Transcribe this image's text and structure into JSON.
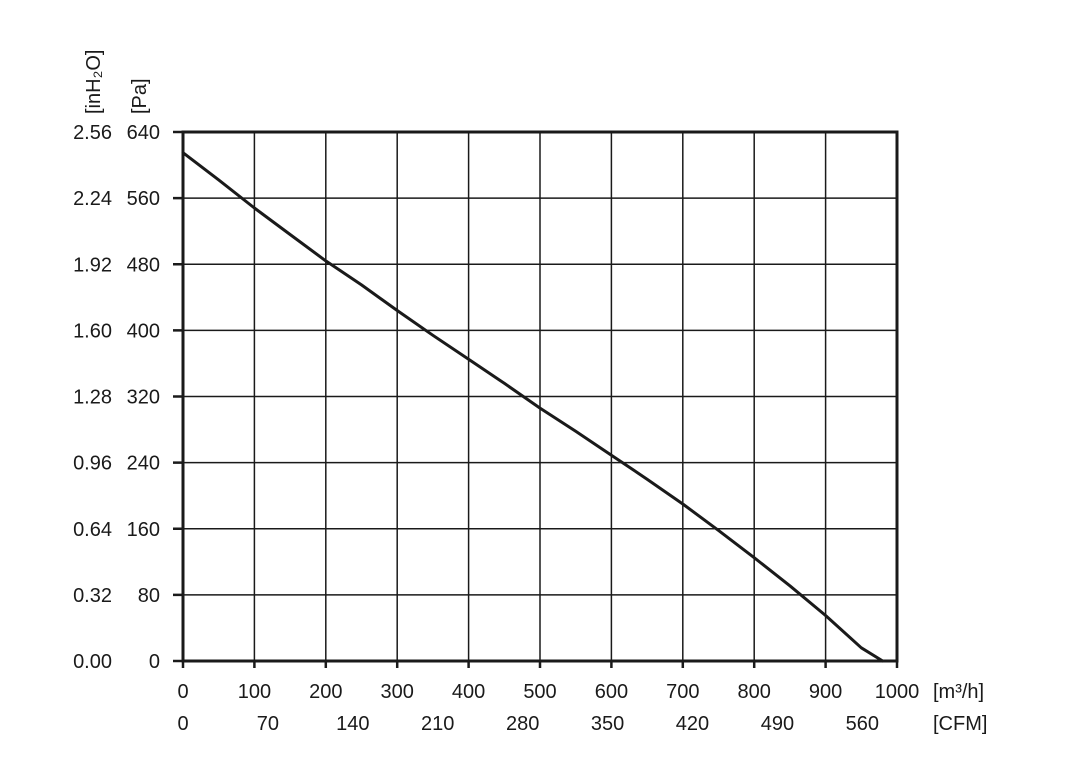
{
  "chart_data": {
    "type": "line",
    "x_label_primary": "[m³/h]",
    "x_label_secondary": "[CFM]",
    "y_label_primary": "[Pa]",
    "y_label_secondary": "[inH₂O]",
    "x_ticks": [
      "0",
      "100",
      "200",
      "300",
      "400",
      "500",
      "600",
      "700",
      "800",
      "900",
      "1000"
    ],
    "x_ticks_secondary": [
      "0",
      "70",
      "140",
      "210",
      "280",
      "350",
      "420",
      "490",
      "560"
    ],
    "x_ticks_secondary_values": [
      0,
      70,
      140,
      210,
      280,
      350,
      420,
      490,
      560
    ],
    "y_ticks_pa": [
      "0",
      "80",
      "160",
      "240",
      "320",
      "400",
      "480",
      "560",
      "640"
    ],
    "y_ticks_inh2o": [
      "0.00",
      "0.32",
      "0.64",
      "0.96",
      "1.28",
      "1.60",
      "1.92",
      "2.24",
      "2.56"
    ],
    "xlim": [
      0,
      1000
    ],
    "ylim": [
      0,
      640
    ],
    "cfm_per_m3h": 0.5886,
    "grid": true,
    "series": [
      {
        "x": [
          0,
          50,
          100,
          150,
          200,
          250,
          300,
          350,
          400,
          450,
          500,
          550,
          600,
          650,
          700,
          750,
          800,
          850,
          900,
          950,
          980
        ],
        "y": [
          615,
          582,
          548,
          516,
          484,
          455,
          424,
          394,
          365,
          336,
          306,
          278,
          249,
          220,
          190,
          158,
          125,
          91,
          55,
          16,
          0
        ]
      }
    ]
  }
}
